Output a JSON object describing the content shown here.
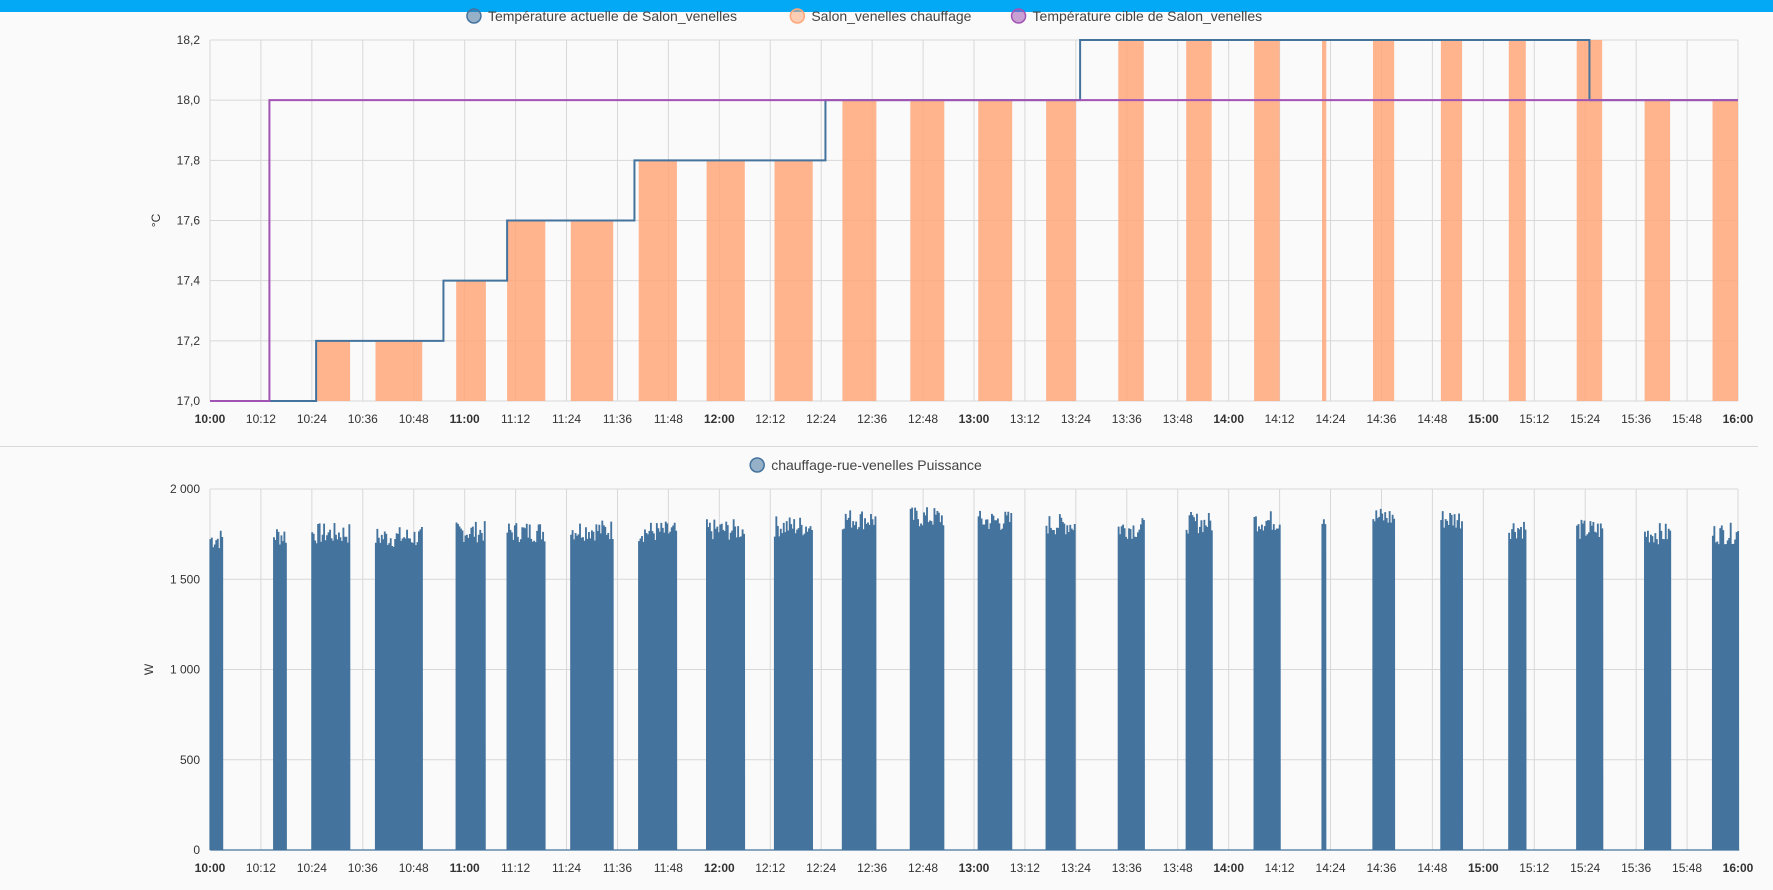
{
  "colors": {
    "accent_bar": "#03a9f4",
    "current_temp": "#44739e",
    "heating": "#ffa77a",
    "target_temp": "#a254b5",
    "power": "#44739e",
    "grid": "#d8d8d8"
  },
  "chart_data": [
    {
      "type": "line",
      "ylabel": "°C",
      "ylim": [
        17.0,
        18.2
      ],
      "y_ticks": [
        "17,0",
        "17,2",
        "17,4",
        "17,6",
        "17,8",
        "18,0",
        "18,2"
      ],
      "y_tick_values": [
        17.0,
        17.2,
        17.4,
        17.6,
        17.8,
        18.0,
        18.2
      ],
      "x_range": [
        "10:00",
        "16:00"
      ],
      "x_ticks": [
        "10:00",
        "10:12",
        "10:24",
        "10:36",
        "10:48",
        "11:00",
        "11:12",
        "11:24",
        "11:36",
        "11:48",
        "12:00",
        "12:12",
        "12:24",
        "12:36",
        "12:48",
        "13:00",
        "13:12",
        "13:24",
        "13:36",
        "13:48",
        "14:00",
        "14:12",
        "14:24",
        "14:36",
        "14:48",
        "15:00",
        "15:12",
        "15:24",
        "15:36",
        "15:48",
        "16:00"
      ],
      "x_ticks_bold": [
        "10:00",
        "11:00",
        "12:00",
        "13:00",
        "14:00",
        "15:00",
        "16:00"
      ],
      "grid": true,
      "legend": {
        "position": "top-center",
        "items": [
          {
            "label": "Température actuelle de Salon_venelles",
            "color": "#44739e"
          },
          {
            "label": "Salon_venelles chauffage",
            "color": "#ffa77a"
          },
          {
            "label": "Température cible de Salon_venelles",
            "color": "#a254b5"
          }
        ]
      },
      "series": [
        {
          "name": "Température actuelle de Salon_venelles",
          "type": "step",
          "points": [
            [
              "10:00",
              17.0
            ],
            [
              "10:25",
              17.2
            ],
            [
              "10:55",
              17.4
            ],
            [
              "11:10",
              17.6
            ],
            [
              "11:40",
              17.8
            ],
            [
              "12:25",
              18.0
            ],
            [
              "13:25",
              18.2
            ],
            [
              "15:25",
              18.0
            ],
            [
              "16:00",
              18.0
            ]
          ]
        },
        {
          "name": "Salon_venelles chauffage",
          "type": "area-blocks",
          "blocks": [
            [
              "10:25",
              "10:33"
            ],
            [
              "10:39",
              "10:50"
            ],
            [
              "10:58",
              "11:05"
            ],
            [
              "11:10",
              "11:19"
            ],
            [
              "11:25",
              "11:35"
            ],
            [
              "11:41",
              "11:50"
            ],
            [
              "11:57",
              "12:06"
            ],
            [
              "12:13",
              "12:22"
            ],
            [
              "12:29",
              "12:37"
            ],
            [
              "12:45",
              "12:53"
            ],
            [
              "13:01",
              "13:09"
            ],
            [
              "13:17",
              "13:24"
            ],
            [
              "13:34",
              "13:40"
            ],
            [
              "13:50",
              "13:56"
            ],
            [
              "14:06",
              "14:12"
            ],
            [
              "14:22",
              "14:23"
            ],
            [
              "14:34",
              "14:39"
            ],
            [
              "14:50",
              "14:55"
            ],
            [
              "15:06",
              "15:10"
            ],
            [
              "15:22",
              "15:28"
            ],
            [
              "15:38",
              "15:44"
            ],
            [
              "15:54",
              "16:00"
            ]
          ]
        },
        {
          "name": "Température cible de Salon_venelles",
          "type": "step",
          "points": [
            [
              "10:00",
              17.0
            ],
            [
              "10:14",
              18.0
            ],
            [
              "16:00",
              18.0
            ]
          ]
        }
      ]
    },
    {
      "type": "line",
      "ylabel": "W",
      "ylim": [
        0,
        2000
      ],
      "y_ticks": [
        "0",
        "500",
        "1 000",
        "1 500",
        "2 000"
      ],
      "y_tick_values": [
        0,
        500,
        1000,
        1500,
        2000
      ],
      "x_range": [
        "10:00",
        "16:00"
      ],
      "x_ticks": [
        "10:00",
        "10:12",
        "10:24",
        "10:36",
        "10:48",
        "11:00",
        "11:12",
        "11:24",
        "11:36",
        "11:48",
        "12:00",
        "12:12",
        "12:24",
        "12:36",
        "12:48",
        "13:00",
        "13:12",
        "13:24",
        "13:36",
        "13:48",
        "14:00",
        "14:12",
        "14:24",
        "14:36",
        "14:48",
        "15:00",
        "15:12",
        "15:24",
        "15:36",
        "15:48",
        "16:00"
      ],
      "x_ticks_bold": [
        "10:00",
        "11:00",
        "12:00",
        "13:00",
        "14:00",
        "15:00",
        "16:00"
      ],
      "grid": true,
      "legend": {
        "position": "top-center",
        "items": [
          {
            "label": "chauffage-rue-venelles Puissance",
            "color": "#44739e"
          }
        ]
      },
      "series": [
        {
          "name": "chauffage-rue-venelles Puissance",
          "type": "pulsed",
          "bursts": [
            {
              "start": "10:00",
              "end": "10:03",
              "level": 1720
            },
            {
              "start": "10:15",
              "end": "10:18",
              "level": 1740
            },
            {
              "start": "10:24",
              "end": "10:33",
              "level": 1750
            },
            {
              "start": "10:39",
              "end": "10:50",
              "level": 1730
            },
            {
              "start": "10:58",
              "end": "11:05",
              "level": 1760
            },
            {
              "start": "11:10",
              "end": "11:19",
              "level": 1760
            },
            {
              "start": "11:25",
              "end": "11:35",
              "level": 1770
            },
            {
              "start": "11:41",
              "end": "11:50",
              "level": 1760
            },
            {
              "start": "11:57",
              "end": "12:06",
              "level": 1770
            },
            {
              "start": "12:13",
              "end": "12:22",
              "level": 1790
            },
            {
              "start": "12:29",
              "end": "12:37",
              "level": 1830
            },
            {
              "start": "12:45",
              "end": "12:53",
              "level": 1840
            },
            {
              "start": "13:01",
              "end": "13:09",
              "level": 1820
            },
            {
              "start": "13:17",
              "end": "13:24",
              "level": 1800
            },
            {
              "start": "13:34",
              "end": "13:40",
              "level": 1780
            },
            {
              "start": "13:50",
              "end": "13:56",
              "level": 1810
            },
            {
              "start": "14:06",
              "end": "14:12",
              "level": 1820
            },
            {
              "start": "14:22",
              "end": "14:23",
              "level": 1850
            },
            {
              "start": "14:34",
              "end": "14:39",
              "level": 1840
            },
            {
              "start": "14:50",
              "end": "14:55",
              "level": 1830
            },
            {
              "start": "15:06",
              "end": "15:10",
              "level": 1780
            },
            {
              "start": "15:22",
              "end": "15:28",
              "level": 1770
            },
            {
              "start": "15:38",
              "end": "15:44",
              "level": 1750
            },
            {
              "start": "15:54",
              "end": "16:00",
              "level": 1750
            }
          ]
        }
      ]
    }
  ]
}
